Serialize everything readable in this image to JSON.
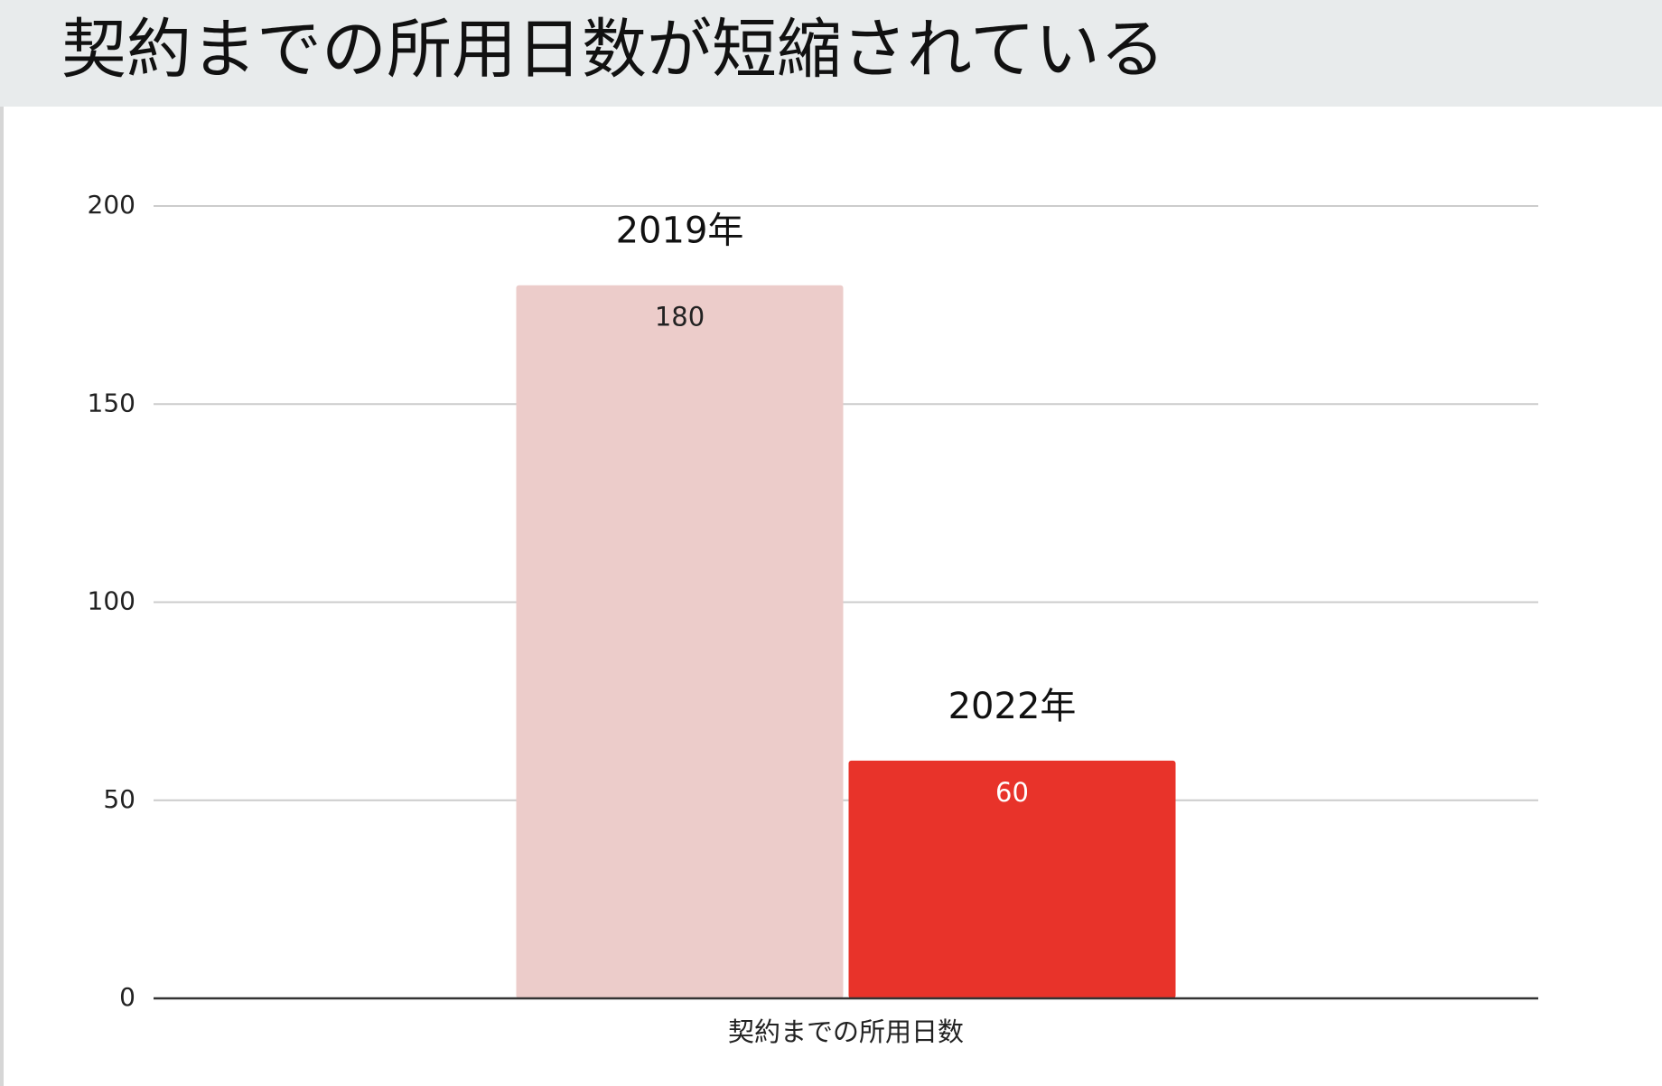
{
  "chart_data": {
    "type": "bar",
    "title": "契約までの所用日数が短縮されている",
    "categories": [
      "契約までの所用日数"
    ],
    "series": [
      {
        "name": "2019年",
        "color": "#ecccca",
        "values": [
          180
        ],
        "label_color": "#222222"
      },
      {
        "name": "2022年",
        "color": "#e8332a",
        "values": [
          60
        ],
        "label_color": "#ffffff"
      }
    ],
    "ylim": [
      0,
      200
    ],
    "yticks": [
      0,
      50,
      100,
      150,
      200
    ],
    "grid": true
  }
}
